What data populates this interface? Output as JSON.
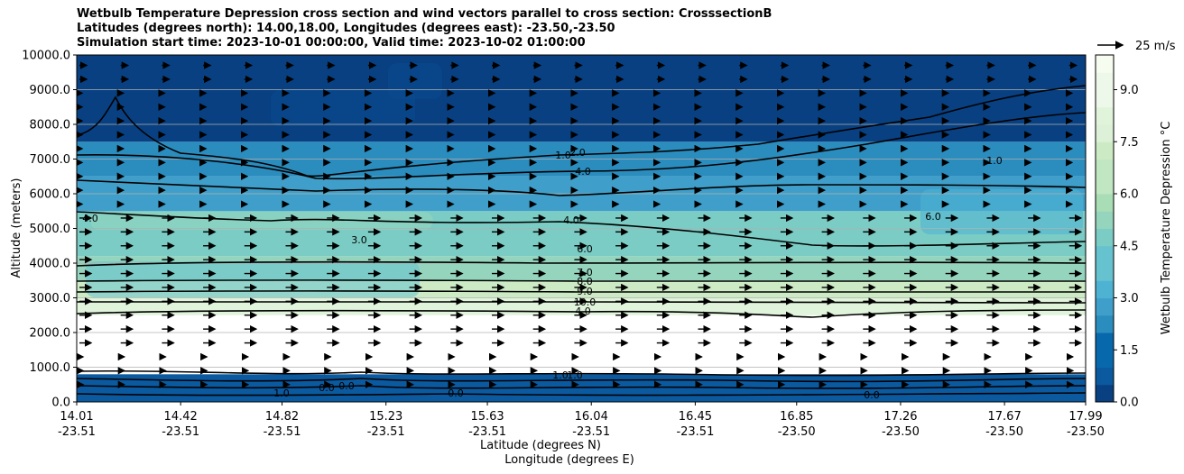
{
  "chart_data": {
    "type": "contour",
    "title": [
      "Wetbulb Temperature Depression cross section and wind vectors parallel to cross section: CrosssectionB",
      "Latitudes (degrees north): 14.00,18.00, Longitudes (degrees east): -23.50,-23.50",
      "Simulation start time: 2023-10-01 00:00:00, Valid time: 2023-10-02 01:00:00"
    ],
    "ylabel": "Altitude (meters)",
    "xlabel_lat": "Latitude (degrees N)",
    "xlabel_lon": "Longitude (degrees E)",
    "ylim": [
      0,
      10000
    ],
    "yticks": [
      "0.0",
      "1000.0",
      "2000.0",
      "3000.0",
      "4000.0",
      "5000.0",
      "6000.0",
      "7000.0",
      "8000.0",
      "9000.0",
      "10000.0"
    ],
    "xticks": [
      {
        "lat": "14.01",
        "lon": "-23.51"
      },
      {
        "lat": "14.42",
        "lon": "-23.51"
      },
      {
        "lat": "14.82",
        "lon": "-23.51"
      },
      {
        "lat": "15.23",
        "lon": "-23.51"
      },
      {
        "lat": "15.63",
        "lon": "-23.51"
      },
      {
        "lat": "16.04",
        "lon": "-23.51"
      },
      {
        "lat": "16.45",
        "lon": "-23.51"
      },
      {
        "lat": "16.85",
        "lon": "-23.50"
      },
      {
        "lat": "17.26",
        "lon": "-23.50"
      },
      {
        "lat": "17.67",
        "lon": "-23.50"
      },
      {
        "lat": "17.99",
        "lon": "-23.50"
      }
    ],
    "colorbar": {
      "label": "Wetbulb Temperature Depression °C",
      "ticks": [
        "0.0",
        "1.5",
        "3.0",
        "4.5",
        "6.0",
        "7.5",
        "9.0"
      ],
      "range": [
        0,
        10
      ]
    },
    "quiver_key": "25 m/s",
    "contour_labels": [
      "1.0",
      "2.0",
      "4.0",
      "4.0",
      "6.0",
      "7.0",
      "8.0",
      "9.0",
      "10.0",
      "4.0",
      "3.0",
      "6.0",
      "4.0",
      "1.0",
      "1.0",
      "0.0",
      "0.0",
      "0.0",
      "1.0",
      "1.0",
      "0.0"
    ],
    "layers": [
      {
        "z0": 0,
        "z1": 800,
        "value": 1.0
      },
      {
        "z0": 800,
        "z1": 2500,
        "value": 10.0
      },
      {
        "z0": 2500,
        "z1": 3000,
        "value": 8.5
      },
      {
        "z0": 3000,
        "z1": 3500,
        "value": 7.0
      },
      {
        "z0": 3500,
        "z1": 4200,
        "value": 5.5
      },
      {
        "z0": 4200,
        "z1": 5500,
        "value": 4.5
      },
      {
        "z0": 5500,
        "z1": 6500,
        "value": 3.0
      },
      {
        "z0": 6500,
        "z1": 7500,
        "value": 2.0
      },
      {
        "z0": 7500,
        "z1": 10000,
        "value": 0.6
      }
    ]
  }
}
